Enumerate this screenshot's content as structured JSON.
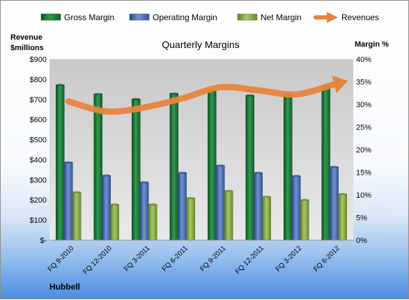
{
  "chart_data": {
    "type": "bar",
    "title": "Quarterly Margins",
    "ylabel_left": "Revenue $millions",
    "ylabel_right": "Margin %",
    "footer": "Hubbell",
    "categories": [
      "FQ 9-2010",
      "FQ 12-2010",
      "FQ 3-2011",
      "FQ 6-2011",
      "FQ 9-2011",
      "FQ 12-2011",
      "FQ 3-2012",
      "FQ 6-2012"
    ],
    "left_axis": {
      "min": 0,
      "max": 900,
      "step": 100,
      "ticks": [
        "$-",
        "$100",
        "$200",
        "$300",
        "$400",
        "$500",
        "$600",
        "$700",
        "$800",
        "$900"
      ]
    },
    "right_axis": {
      "min": 0,
      "max": 40,
      "step": 5,
      "ticks": [
        "0%",
        "5%",
        "10%",
        "15%",
        "20%",
        "25%",
        "30%",
        "35%",
        "40%"
      ]
    },
    "series": [
      {
        "name": "Gross Margin",
        "type": "bar",
        "axis": "right",
        "unit": "%",
        "color": "#1e7a3a",
        "values": [
          34.3,
          32.3,
          31.2,
          32.4,
          33.0,
          32.0,
          32.2,
          34.1
        ]
      },
      {
        "name": "Operating Margin",
        "type": "bar",
        "axis": "right",
        "unit": "%",
        "color": "#4f74b8",
        "values": [
          17.2,
          14.3,
          12.8,
          14.9,
          16.5,
          14.9,
          14.2,
          16.2
        ]
      },
      {
        "name": "Net Margin",
        "type": "bar",
        "axis": "right",
        "unit": "%",
        "color": "#8db04a",
        "values": [
          10.6,
          7.9,
          7.9,
          9.3,
          10.9,
          9.6,
          8.9,
          10.2
        ]
      },
      {
        "name": "Revenues",
        "type": "line",
        "axis": "left",
        "unit": "$M",
        "color": "#e8843d",
        "values": [
          690,
          640,
          660,
          705,
          760,
          745,
          725,
          775
        ]
      }
    ],
    "legend_position": "top",
    "grid": false
  }
}
